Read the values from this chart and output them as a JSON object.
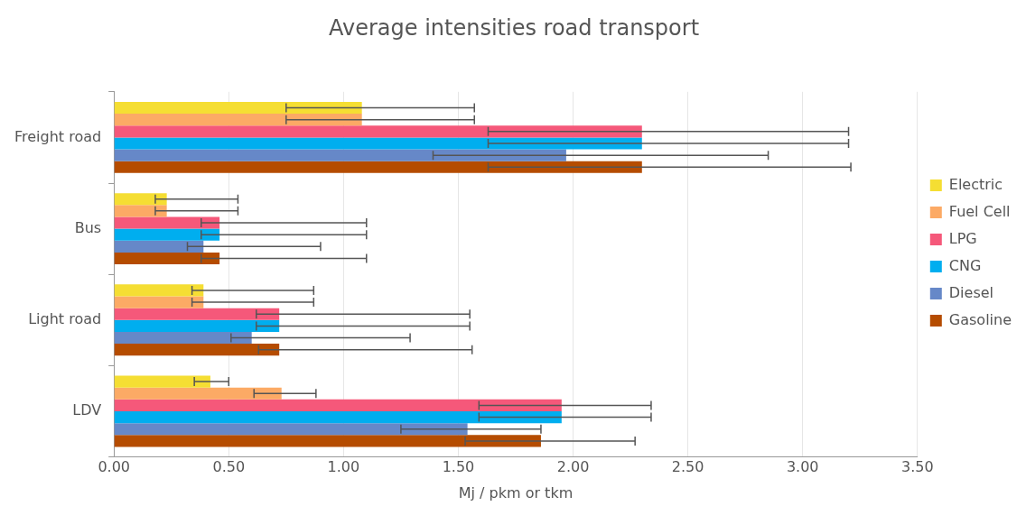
{
  "chart_data": {
    "type": "bar",
    "orientation": "horizontal",
    "title": "Average intensities road transport",
    "xlabel": "Mj / pkm or tkm",
    "categories": [
      "Freight road",
      "Bus",
      "Light road",
      "LDV"
    ],
    "xlim": [
      0,
      3.5
    ],
    "xticks": [
      {
        "value": 0,
        "label": "0.00"
      },
      {
        "value": 0.5,
        "label": "0.50"
      },
      {
        "value": 1,
        "label": "1.00"
      },
      {
        "value": 1.5,
        "label": "1.50"
      },
      {
        "value": 2,
        "label": "2.00"
      },
      {
        "value": 2.5,
        "label": "2.50"
      },
      {
        "value": 3,
        "label": "3.00"
      },
      {
        "value": 3.5,
        "label": "3.50"
      }
    ],
    "grid": "x",
    "legend": "right",
    "series": [
      {
        "name": "Electric",
        "color": "#f5de33",
        "values": [
          1.08,
          0.23,
          0.39,
          0.42
        ],
        "errors": [
          [
            0.75,
            1.57
          ],
          [
            0.18,
            0.54
          ],
          [
            0.34,
            0.87
          ],
          [
            0.35,
            0.5
          ]
        ]
      },
      {
        "name": "Fuel Cell",
        "color": "#fcaa65",
        "values": [
          1.08,
          0.23,
          0.39,
          0.73
        ],
        "errors": [
          [
            0.75,
            1.57
          ],
          [
            0.18,
            0.54
          ],
          [
            0.34,
            0.87
          ],
          [
            0.61,
            0.88
          ]
        ]
      },
      {
        "name": "LPG",
        "color": "#f5587a",
        "values": [
          2.3,
          0.46,
          0.72,
          1.95
        ],
        "errors": [
          [
            1.63,
            3.2
          ],
          [
            0.38,
            1.1
          ],
          [
            0.62,
            1.55
          ],
          [
            1.59,
            2.34
          ]
        ]
      },
      {
        "name": "CNG",
        "color": "#00aeef",
        "values": [
          2.3,
          0.46,
          0.72,
          1.95
        ],
        "errors": [
          [
            1.63,
            3.2
          ],
          [
            0.38,
            1.1
          ],
          [
            0.62,
            1.55
          ],
          [
            1.59,
            2.34
          ]
        ]
      },
      {
        "name": "Diesel",
        "color": "#6688c8",
        "values": [
          1.97,
          0.39,
          0.6,
          1.54
        ],
        "errors": [
          [
            1.39,
            2.85
          ],
          [
            0.32,
            0.9
          ],
          [
            0.51,
            1.29
          ],
          [
            1.25,
            1.86
          ]
        ]
      },
      {
        "name": "Gasoline",
        "color": "#b54c00",
        "values": [
          2.3,
          0.46,
          0.72,
          1.86
        ],
        "errors": [
          [
            1.63,
            3.21
          ],
          [
            0.38,
            1.1
          ],
          [
            0.63,
            1.56
          ],
          [
            1.53,
            2.27
          ]
        ]
      }
    ]
  }
}
